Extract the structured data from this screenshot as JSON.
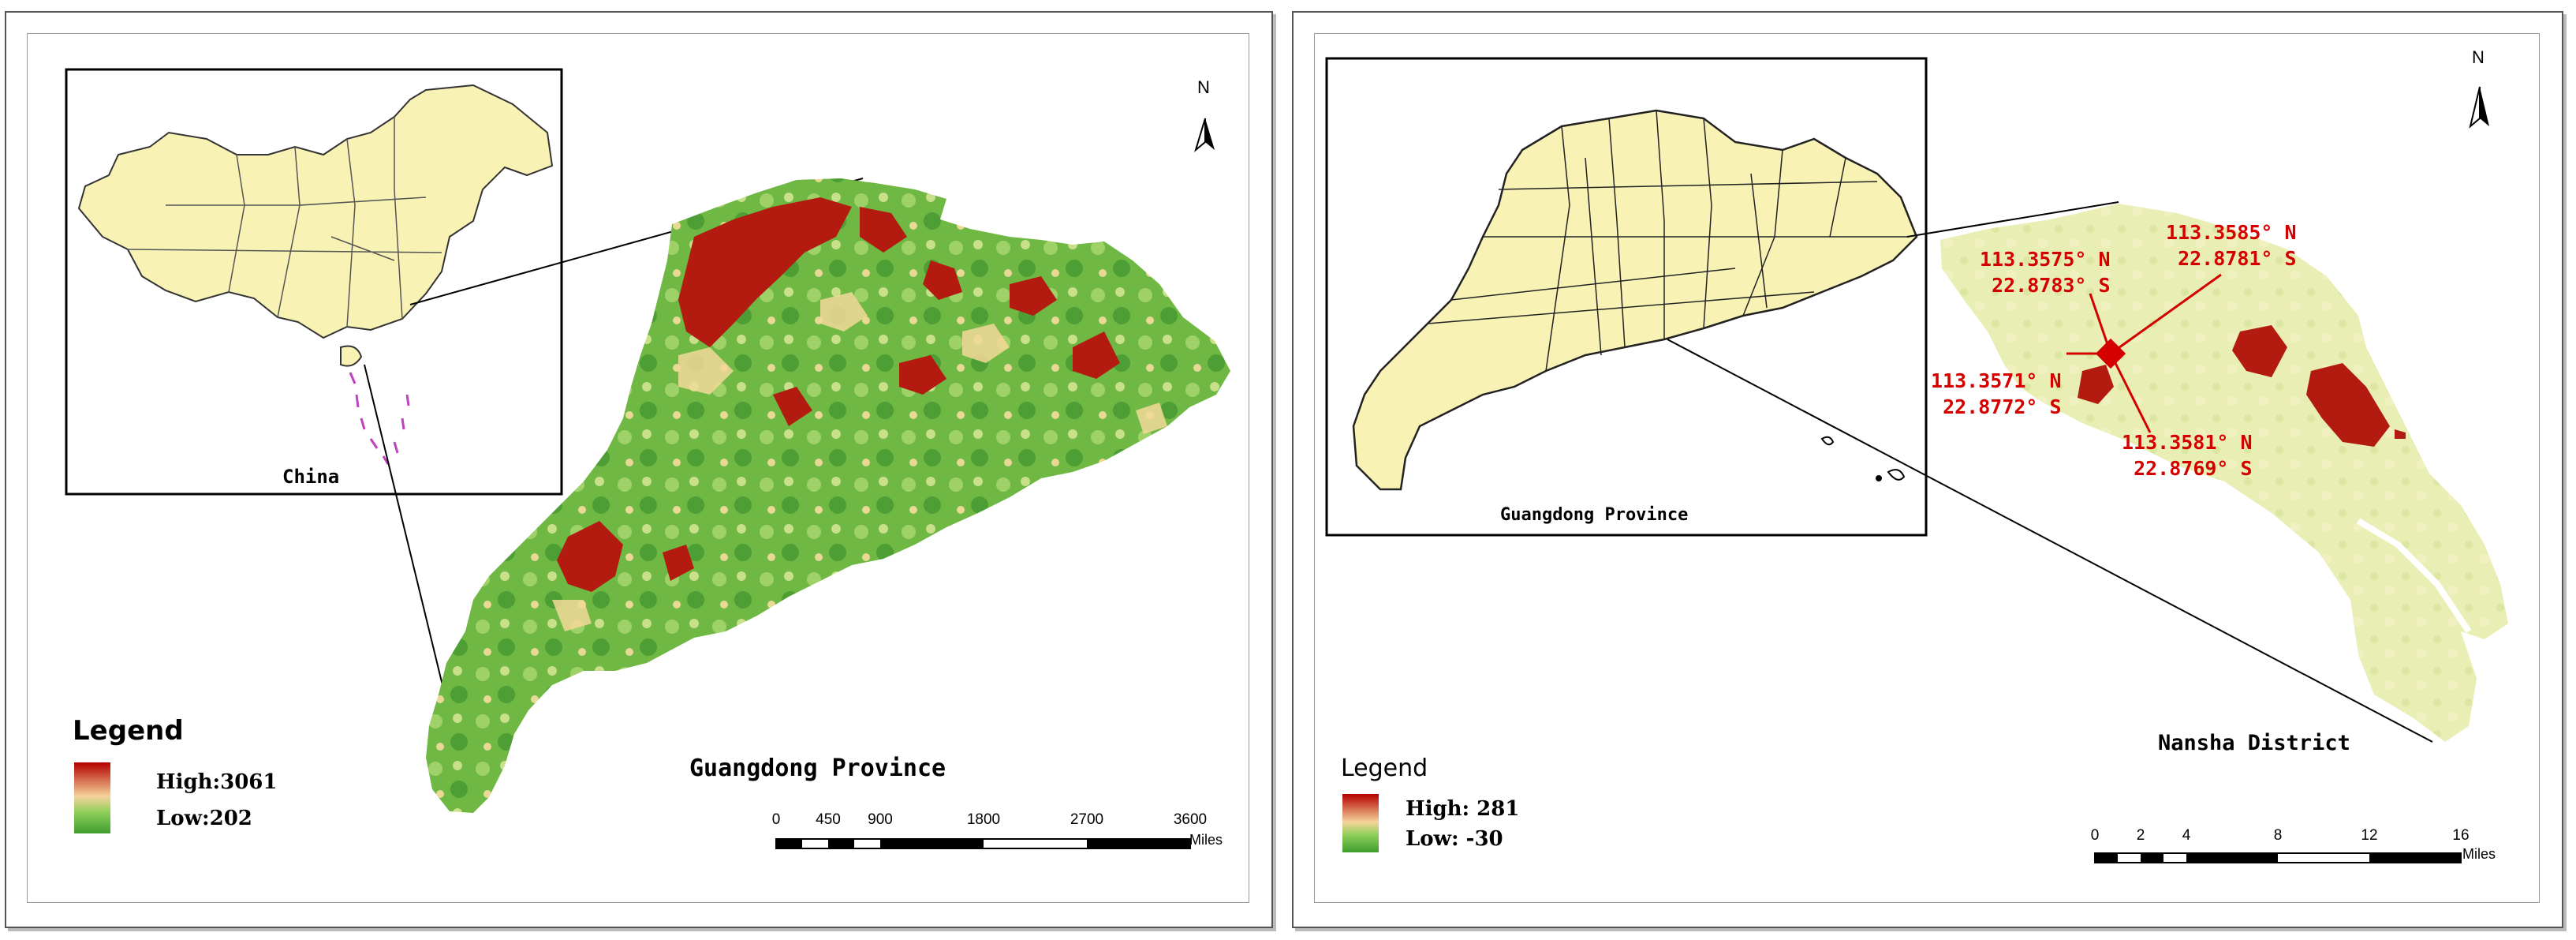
{
  "left_panel": {
    "inset_label": "China",
    "main_label": "Guangdong Province",
    "legend": {
      "title": "Legend",
      "high": "High:3061",
      "low": "Low:202"
    },
    "scale": {
      "ticks": [
        "0",
        "450",
        "900",
        "1800",
        "2700",
        "3600"
      ],
      "unit": "Miles"
    },
    "north": "N"
  },
  "right_panel": {
    "inset_label": "Guangdong Province",
    "main_label": "Nansha District",
    "legend": {
      "title": "Legend",
      "high": "High: 281",
      "low": "Low: -30"
    },
    "scale": {
      "ticks": [
        "0",
        "2",
        "4",
        "8",
        "12",
        "16"
      ],
      "unit": "Miles"
    },
    "north": "N",
    "coordinates": [
      {
        "lon": "113.3585° N",
        "lat": "22.8781° S"
      },
      {
        "lon": "113.3575° N",
        "lat": "22.8783° S"
      },
      {
        "lon": "113.3571° N",
        "lat": "22.8772° S"
      },
      {
        "lon": "113.3581° N",
        "lat": "22.8769° S"
      }
    ]
  },
  "colors": {
    "high": "#b40000",
    "mid": "#f5d39a",
    "low": "#3e9e2e",
    "highlight": "#d40000",
    "land": "#f8f3b5"
  }
}
